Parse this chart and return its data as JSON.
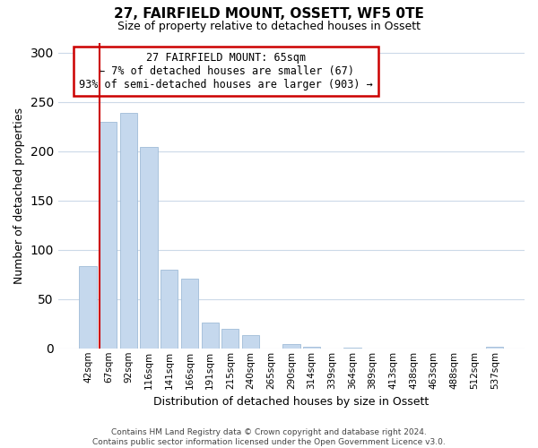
{
  "title": "27, FAIRFIELD MOUNT, OSSETT, WF5 0TE",
  "subtitle": "Size of property relative to detached houses in Ossett",
  "xlabel": "Distribution of detached houses by size in Ossett",
  "ylabel": "Number of detached properties",
  "bar_labels": [
    "42sqm",
    "67sqm",
    "92sqm",
    "116sqm",
    "141sqm",
    "166sqm",
    "191sqm",
    "215sqm",
    "240sqm",
    "265sqm",
    "290sqm",
    "314sqm",
    "339sqm",
    "364sqm",
    "389sqm",
    "413sqm",
    "438sqm",
    "463sqm",
    "488sqm",
    "512sqm",
    "537sqm"
  ],
  "bar_values": [
    83,
    230,
    239,
    204,
    80,
    71,
    26,
    20,
    13,
    0,
    4,
    2,
    0,
    1,
    0,
    0,
    0,
    0,
    0,
    0,
    2
  ],
  "bar_color": "#c5d8ed",
  "bar_edge_color": "#a0bcd8",
  "highlight_color": "#cc0000",
  "ylim": [
    0,
    310
  ],
  "yticks": [
    0,
    50,
    100,
    150,
    200,
    250,
    300
  ],
  "annotation_title": "27 FAIRFIELD MOUNT: 65sqm",
  "annotation_line1": "← 7% of detached houses are smaller (67)",
  "annotation_line2": "93% of semi-detached houses are larger (903) →",
  "annotation_box_color": "#ffffff",
  "annotation_box_edgecolor": "#cc0000",
  "footer_line1": "Contains HM Land Registry data © Crown copyright and database right 2024.",
  "footer_line2": "Contains public sector information licensed under the Open Government Licence v3.0.",
  "background_color": "#ffffff",
  "grid_color": "#ccd9e8"
}
